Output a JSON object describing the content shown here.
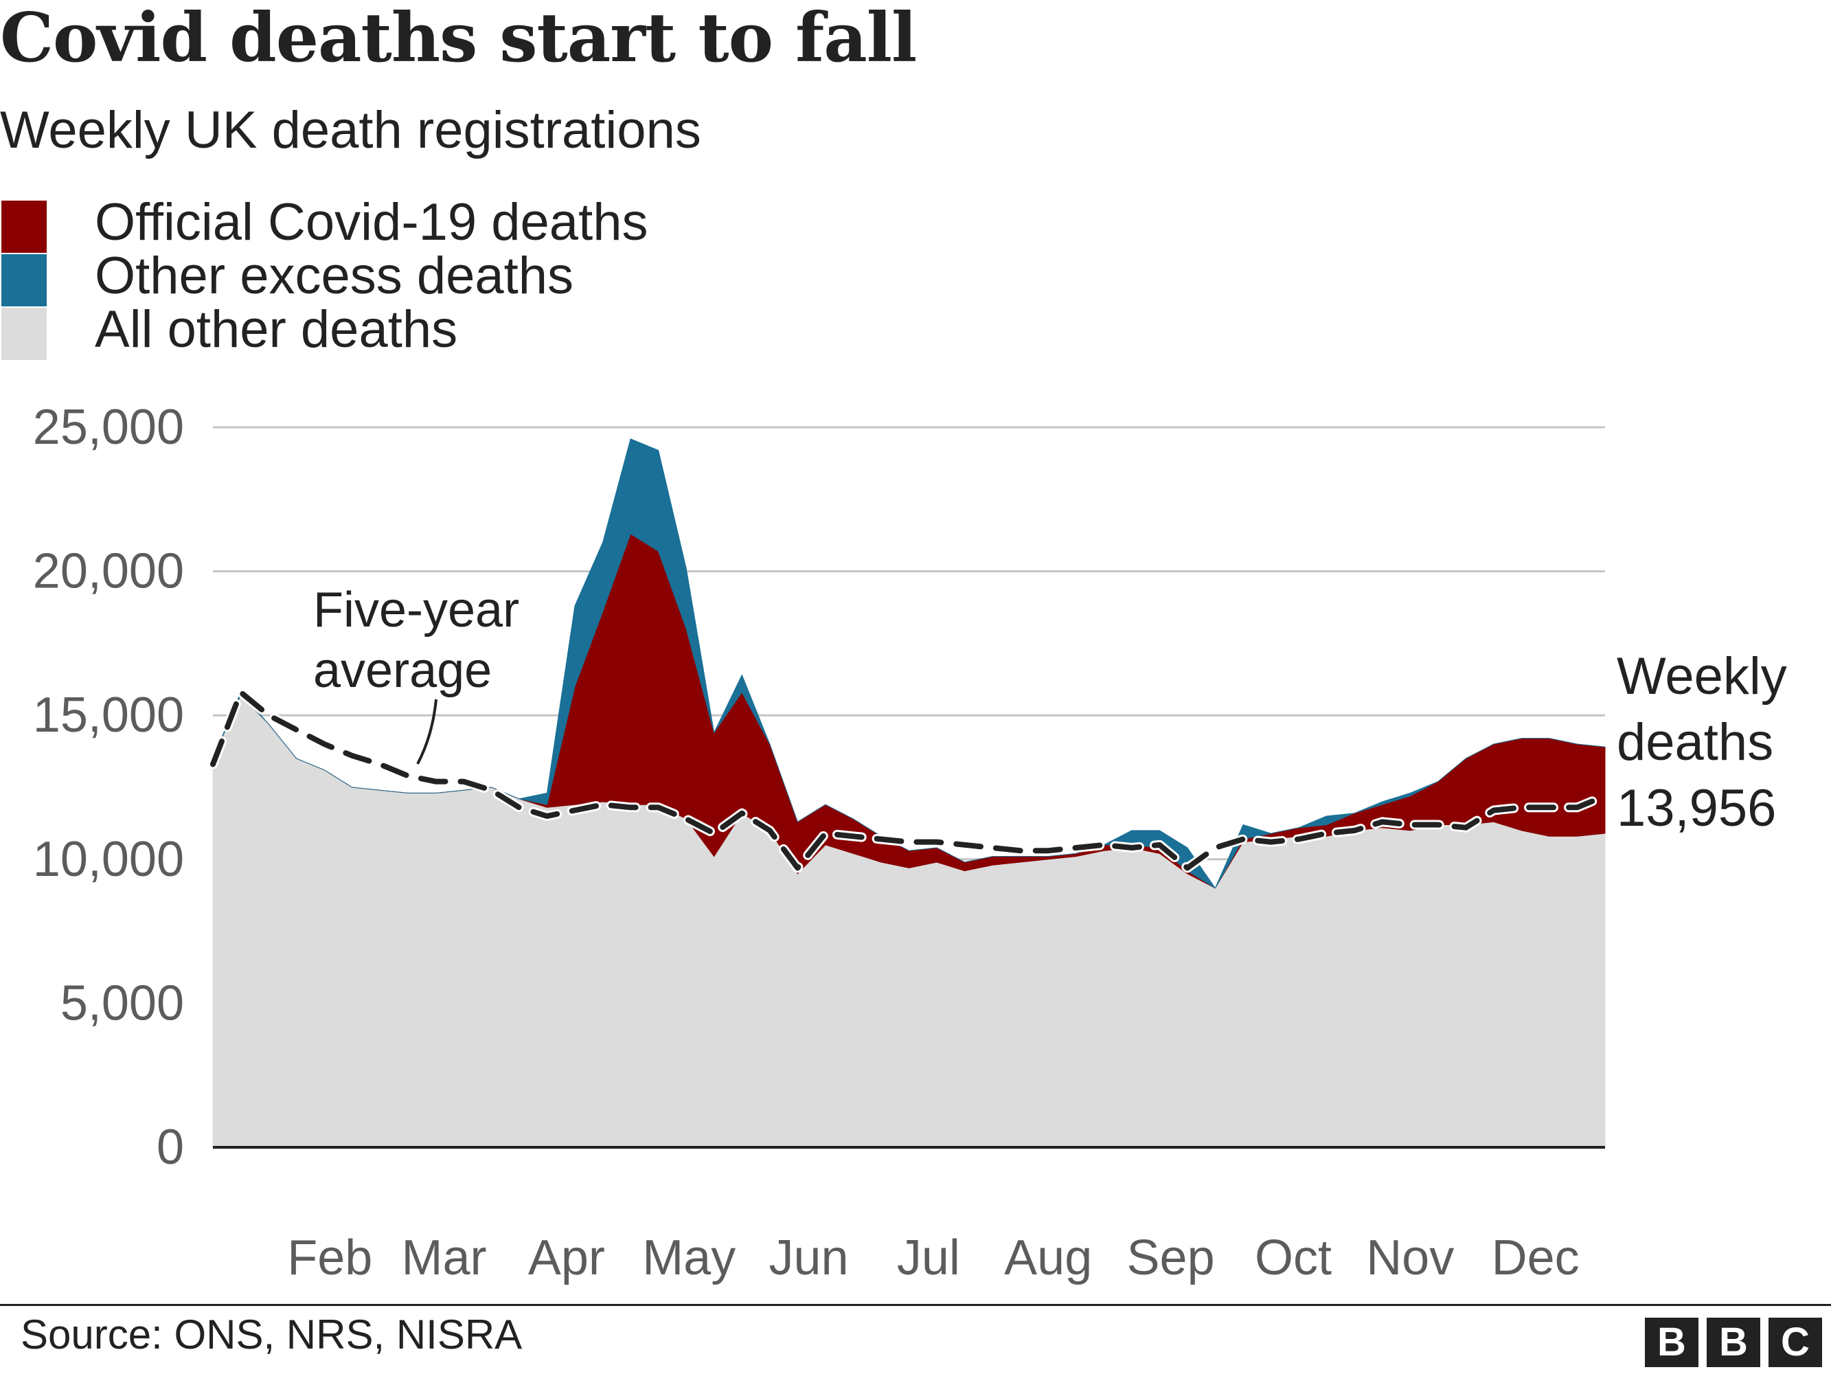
{
  "title": "Covid deaths start to fall",
  "subtitle": "Weekly UK death registrations",
  "legend": [
    {
      "label": "Official Covid-19 deaths",
      "color": "#8a0000"
    },
    {
      "label": "Other excess deaths",
      "color": "#1a7096"
    },
    {
      "label": "All other deaths",
      "color": "#dcdcdc"
    }
  ],
  "annotations": {
    "five_year_average": [
      "Five-year",
      "average"
    ],
    "weekly_deaths": [
      "Weekly",
      "deaths",
      "13,956"
    ]
  },
  "source": "Source: ONS, NRS, NISRA",
  "logo": [
    "B",
    "B",
    "C"
  ],
  "chart_data": {
    "type": "area",
    "x_unit": "week of 2020",
    "x": [
      1,
      2,
      3,
      4,
      5,
      6,
      7,
      8,
      9,
      10,
      11,
      12,
      13,
      14,
      15,
      16,
      17,
      18,
      19,
      20,
      21,
      22,
      23,
      24,
      25,
      26,
      27,
      28,
      29,
      30,
      31,
      32,
      33,
      34,
      35,
      36,
      37,
      38,
      39,
      40,
      41,
      42,
      43,
      44,
      45,
      46,
      47,
      48,
      49,
      50,
      51
    ],
    "xticks": [
      {
        "label": "Feb",
        "week": 5.2
      },
      {
        "label": "Mar",
        "week": 9.3
      },
      {
        "label": "Apr",
        "week": 13.7
      },
      {
        "label": "May",
        "week": 18.1
      },
      {
        "label": "Jun",
        "week": 22.4
      },
      {
        "label": "Jul",
        "week": 26.7
      },
      {
        "label": "Aug",
        "week": 31.0
      },
      {
        "label": "Sep",
        "week": 35.4
      },
      {
        "label": "Oct",
        "week": 39.8
      },
      {
        "label": "Nov",
        "week": 44.0
      },
      {
        "label": "Dec",
        "week": 48.5
      }
    ],
    "yticks": [
      0,
      5000,
      10000,
      15000,
      20000,
      25000
    ],
    "ytick_labels": [
      "0",
      "5,000",
      "10,000",
      "15,000",
      "20,000",
      "25,000"
    ],
    "ylim": [
      0,
      25000
    ],
    "xlim": [
      1,
      51
    ],
    "grid": true,
    "legend_position": "top-left",
    "series": [
      {
        "name": "All other deaths",
        "color": "#dcdcdc",
        "values": [
          13500,
          15700,
          14700,
          13500,
          13100,
          12500,
          12400,
          12300,
          12300,
          12400,
          12500,
          12100,
          11800,
          11900,
          12000,
          11900,
          11900,
          11400,
          10100,
          11600,
          11000,
          9500,
          10500,
          10200,
          9900,
          9700,
          9900,
          9600,
          9800,
          9900,
          10000,
          10100,
          10300,
          10400,
          10200,
          9500,
          9000,
          10600,
          10700,
          10800,
          10800,
          11000,
          11100,
          11000,
          11200,
          11200,
          11300,
          11000,
          10800,
          10800,
          10900
        ]
      },
      {
        "name": "Official Covid-19 deaths",
        "color": "#8a0000",
        "values": [
          0,
          0,
          0,
          0,
          0,
          0,
          0,
          0,
          0,
          0,
          0,
          0,
          100,
          4100,
          6600,
          9400,
          8800,
          6600,
          4300,
          4200,
          3000,
          1800,
          1400,
          1200,
          900,
          600,
          500,
          300,
          300,
          200,
          100,
          100,
          200,
          100,
          200,
          100,
          0,
          100,
          200,
          300,
          400,
          600,
          800,
          1200,
          1500,
          2300,
          2700,
          3200,
          3400,
          3200,
          3000
        ]
      },
      {
        "name": "Other excess deaths",
        "color": "#1a7096",
        "values": [
          0,
          100,
          0,
          0,
          0,
          0,
          0,
          0,
          0,
          0,
          0,
          0,
          400,
          2800,
          2400,
          3300,
          3500,
          2100,
          0,
          600,
          0,
          0,
          0,
          0,
          0,
          0,
          0,
          0,
          0,
          0,
          0,
          0,
          0,
          500,
          600,
          800,
          0,
          500,
          0,
          0,
          300,
          0,
          100,
          100,
          0,
          0,
          0,
          0,
          0,
          0,
          0
        ]
      },
      {
        "name": "Five-year average",
        "style": "dashed",
        "color": "#222222",
        "values": [
          13300,
          15800,
          15000,
          14500,
          14000,
          13600,
          13300,
          12900,
          12700,
          12700,
          12400,
          11800,
          11500,
          11700,
          11900,
          11800,
          11800,
          11400,
          10900,
          11600,
          11000,
          9700,
          10900,
          10800,
          10700,
          10600,
          10600,
          10500,
          10400,
          10300,
          10300,
          10400,
          10500,
          10400,
          10500,
          9700,
          10400,
          10700,
          10600,
          10700,
          10900,
          11000,
          11300,
          11200,
          11200,
          11100,
          11700,
          11800,
          11800,
          11800,
          12200
        ]
      }
    ],
    "latest_value": 13956
  }
}
